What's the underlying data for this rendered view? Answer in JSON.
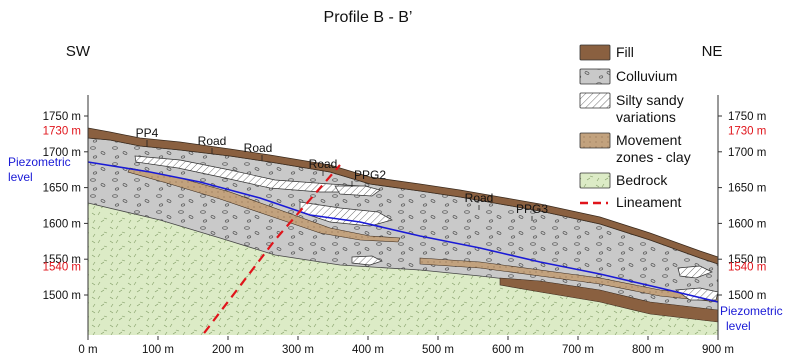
{
  "title": "Profile B - B’",
  "orientation": {
    "left": "SW",
    "right": "NE"
  },
  "x_axis": {
    "ticks": [
      "0 m",
      "100 m",
      "200 m",
      "300 m",
      "400 m",
      "500 m",
      "600 m",
      "700 m",
      "800 m",
      "900 m"
    ]
  },
  "y_axis_left": {
    "ticks": [
      "1750 m",
      "1700 m",
      "1650 m",
      "1600 m",
      "1550 m",
      "1500 m"
    ],
    "highlight_ticks": [
      "1730 m",
      "1540 m"
    ]
  },
  "y_axis_right": {
    "ticks": [
      "1750 m",
      "1700 m",
      "1650 m",
      "1600 m",
      "1550 m",
      "1500 m"
    ],
    "highlight_ticks": [
      "1730 m",
      "1540 m"
    ]
  },
  "piezometric": {
    "left_label": [
      "Piezometric",
      "level"
    ],
    "right_label": [
      "Piezometric",
      "level"
    ]
  },
  "site_labels": [
    "PP4",
    "Road",
    "Road",
    "Road",
    "PPG2",
    "Road",
    "PPG3"
  ],
  "legend": [
    {
      "label": [
        "Fill"
      ],
      "swatch": "fill"
    },
    {
      "label": [
        "Colluvium"
      ],
      "swatch": "colluvium"
    },
    {
      "label": [
        "Silty sandy",
        "variations"
      ],
      "swatch": "silty"
    },
    {
      "label": [
        "Movement",
        "zones - clay"
      ],
      "swatch": "movement"
    },
    {
      "label": [
        "Bedrock"
      ],
      "swatch": "bedrock"
    },
    {
      "label": [
        "Lineament"
      ],
      "swatch": "lineament"
    }
  ],
  "colors": {
    "fill": "#8a6040",
    "colluvium": "#c9c9c9",
    "silty": "#ffffff",
    "movement": "#c2a27e",
    "bedrock": "#dcebc6",
    "lineament": "#e0141b",
    "piezometric": "#1a1ad6",
    "highlight_tick": "#e0141b"
  }
}
